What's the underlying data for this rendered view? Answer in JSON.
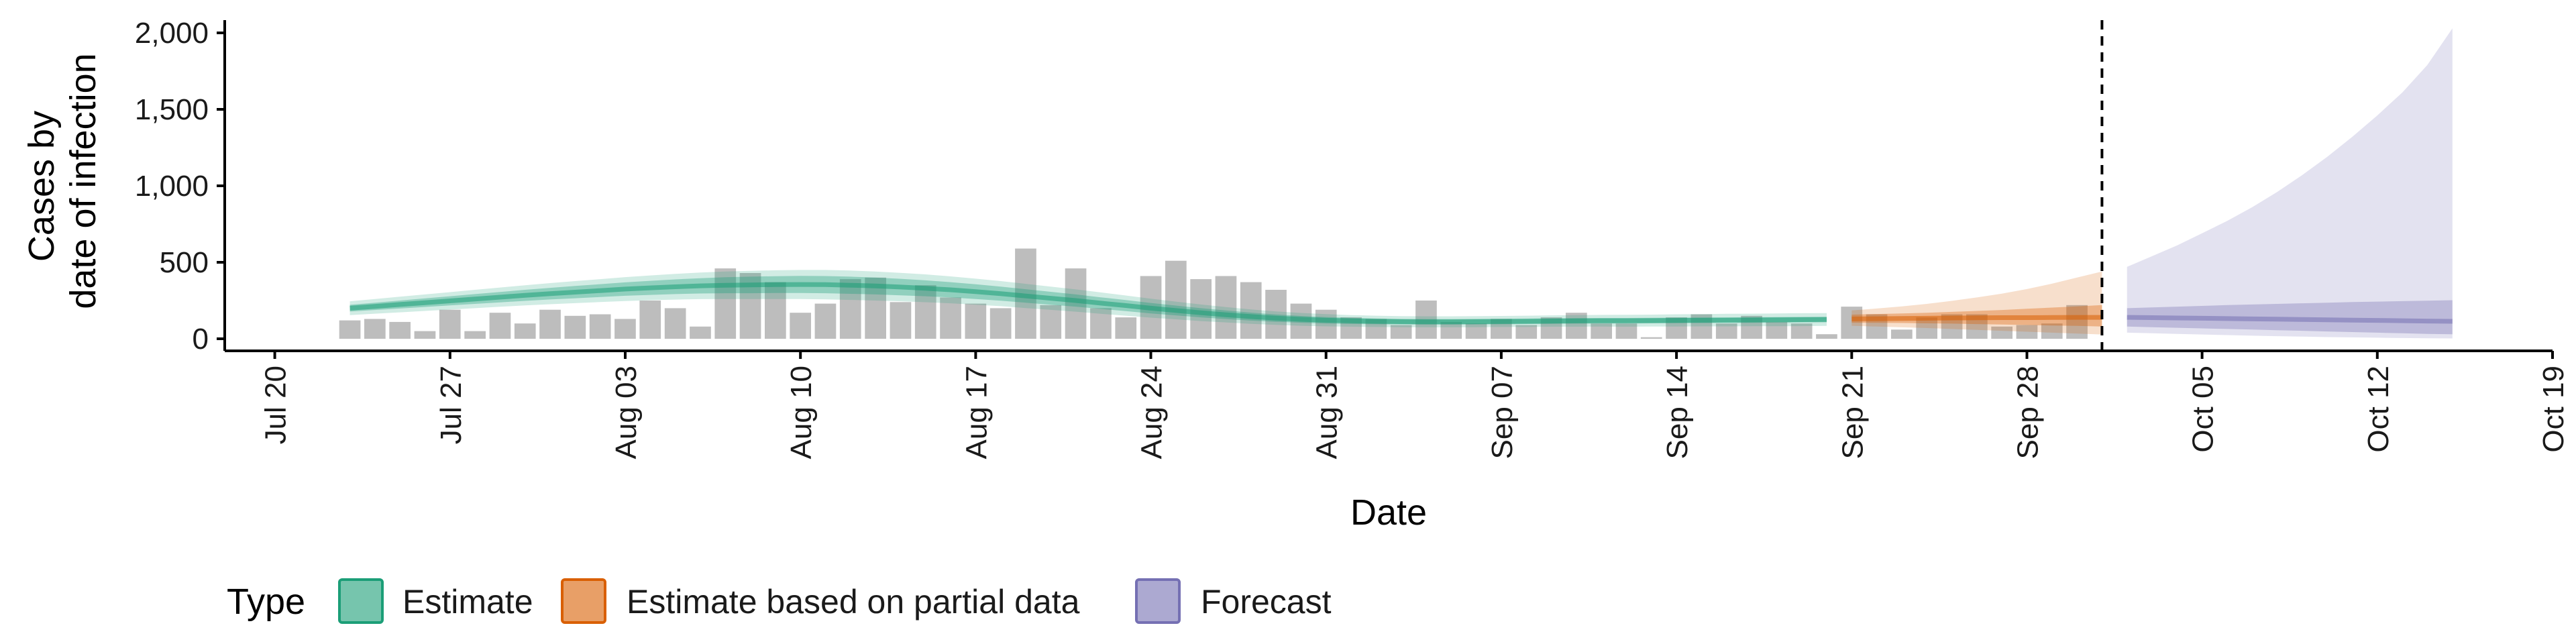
{
  "chart_data": {
    "type": "bar",
    "title": "",
    "xlabel": "Date",
    "ylabel_lines": [
      "Cases by",
      "date of infection"
    ],
    "ylim": [
      0,
      2100
    ],
    "yticks": [
      0,
      500,
      1000,
      1500,
      2000
    ],
    "ytick_labels": [
      "0",
      "500",
      "1,000",
      "1,500",
      "2,000"
    ],
    "xlim": [
      "2020-07-18",
      "2020-10-19"
    ],
    "xticks": [
      "2020-07-20",
      "2020-07-27",
      "2020-08-03",
      "2020-08-10",
      "2020-08-17",
      "2020-08-24",
      "2020-08-31",
      "2020-09-07",
      "2020-09-14",
      "2020-09-21",
      "2020-09-28",
      "2020-10-05",
      "2020-10-12",
      "2020-10-19"
    ],
    "xtick_labels": [
      "Jul 20",
      "Jul 27",
      "Aug 03",
      "Aug 10",
      "Aug 17",
      "Aug 24",
      "Aug 31",
      "Sep 07",
      "Sep 14",
      "Sep 21",
      "Sep 28",
      "Oct 05",
      "Oct 12",
      "Oct 19"
    ],
    "reference_line_date": "2020-10-01",
    "grid": false,
    "legend_position": "bottom",
    "legend": {
      "title": "Type",
      "items": [
        {
          "label": "Estimate",
          "color": "#1b9e77"
        },
        {
          "label": "Estimate based on partial data",
          "color": "#d95f02"
        },
        {
          "label": "Forecast",
          "color": "#7570b3"
        }
      ]
    },
    "bars": {
      "color": "#bdbdbd",
      "start_date": "2020-07-23",
      "values": [
        120,
        130,
        110,
        50,
        190,
        50,
        170,
        100,
        190,
        150,
        160,
        130,
        250,
        200,
        80,
        460,
        430,
        370,
        170,
        230,
        390,
        400,
        240,
        350,
        270,
        230,
        200,
        590,
        220,
        460,
        200,
        140,
        410,
        510,
        390,
        410,
        370,
        320,
        230,
        190,
        140,
        130,
        90,
        250,
        110,
        100,
        130,
        90,
        140,
        170,
        100,
        100,
        10,
        140,
        160,
        100,
        150,
        110,
        100,
        30,
        210,
        160,
        60,
        140,
        160,
        160,
        80,
        90,
        100,
        220
      ]
    },
    "series": [
      {
        "name": "Estimate",
        "color": "#1b9e77",
        "start_date": "2020-07-23",
        "median": [
          200,
          212,
          224,
          236,
          248,
          260,
          272,
          284,
          295,
          305,
          315,
          325,
          333,
          340,
          346,
          350,
          352,
          354,
          355,
          354,
          350,
          345,
          338,
          330,
          320,
          308,
          295,
          280,
          265,
          250,
          233,
          217,
          200,
          185,
          170,
          157,
          145,
          135,
          127,
          121,
          117,
          114,
          112,
          111,
          111,
          112,
          113,
          114,
          116,
          117,
          118,
          118,
          119,
          120,
          121,
          122,
          123,
          124,
          125,
          126
        ],
        "inner_half_width": [
          22,
          24,
          26,
          28,
          30,
          32,
          34,
          36,
          38,
          40,
          42,
          44,
          46,
          48,
          50,
          52,
          54,
          55,
          56,
          56,
          56,
          55,
          54,
          52,
          50,
          48,
          46,
          44,
          42,
          40,
          38,
          36,
          34,
          32,
          30,
          28,
          26,
          24,
          22,
          21,
          20,
          19,
          18,
          18,
          18,
          18,
          18,
          18,
          18,
          18,
          18,
          18,
          18,
          18,
          18,
          18,
          18,
          18,
          18,
          18
        ],
        "outer_half_width": [
          45,
          48,
          51,
          54,
          57,
          60,
          63,
          66,
          69,
          72,
          75,
          78,
          81,
          84,
          87,
          90,
          92,
          94,
          95,
          96,
          96,
          95,
          93,
          91,
          88,
          85,
          82,
          79,
          76,
          73,
          70,
          66,
          62,
          58,
          54,
          50,
          47,
          44,
          42,
          40,
          38,
          37,
          36,
          36,
          36,
          36,
          36,
          37,
          37,
          38,
          38,
          39,
          39,
          40,
          40,
          41,
          41,
          42,
          42,
          42
        ]
      },
      {
        "name": "Estimate based on partial data",
        "color": "#d95f02",
        "start_date": "2020-09-21",
        "median": [
          130,
          131,
          133,
          134,
          136,
          137,
          138,
          138,
          139,
          140,
          140
        ],
        "inner_low": [
          105,
          104,
          103,
          101,
          99,
          96,
          93,
          90,
          87,
          84,
          80
        ],
        "inner_high": [
          158,
          162,
          166,
          170,
          176,
          182,
          188,
          196,
          204,
          212,
          220
        ],
        "outer_low": [
          85,
          80,
          75,
          70,
          64,
          58,
          52,
          46,
          40,
          34,
          28
        ],
        "outer_high": [
          185,
          198,
          212,
          228,
          248,
          270,
          295,
          325,
          360,
          400,
          440
        ]
      },
      {
        "name": "Forecast",
        "color": "#7570b3",
        "start_date": "2020-10-02",
        "median": [
          140,
          138,
          136,
          134,
          132,
          130,
          128,
          126,
          124,
          122,
          120,
          118,
          116,
          114
        ],
        "inner_low": [
          80,
          76,
          72,
          68,
          64,
          60,
          56,
          52,
          48,
          44,
          40,
          36,
          32,
          30
        ],
        "inner_high": [
          200,
          205,
          210,
          215,
          220,
          224,
          228,
          232,
          236,
          240,
          243,
          246,
          249,
          252
        ],
        "outer_low": [
          40,
          36,
          32,
          28,
          24,
          20,
          17,
          14,
          11,
          9,
          7,
          5,
          3,
          2
        ],
        "outer_high": [
          470,
          540,
          610,
          690,
          770,
          860,
          960,
          1070,
          1190,
          1320,
          1460,
          1610,
          1790,
          2030
        ]
      }
    ]
  }
}
